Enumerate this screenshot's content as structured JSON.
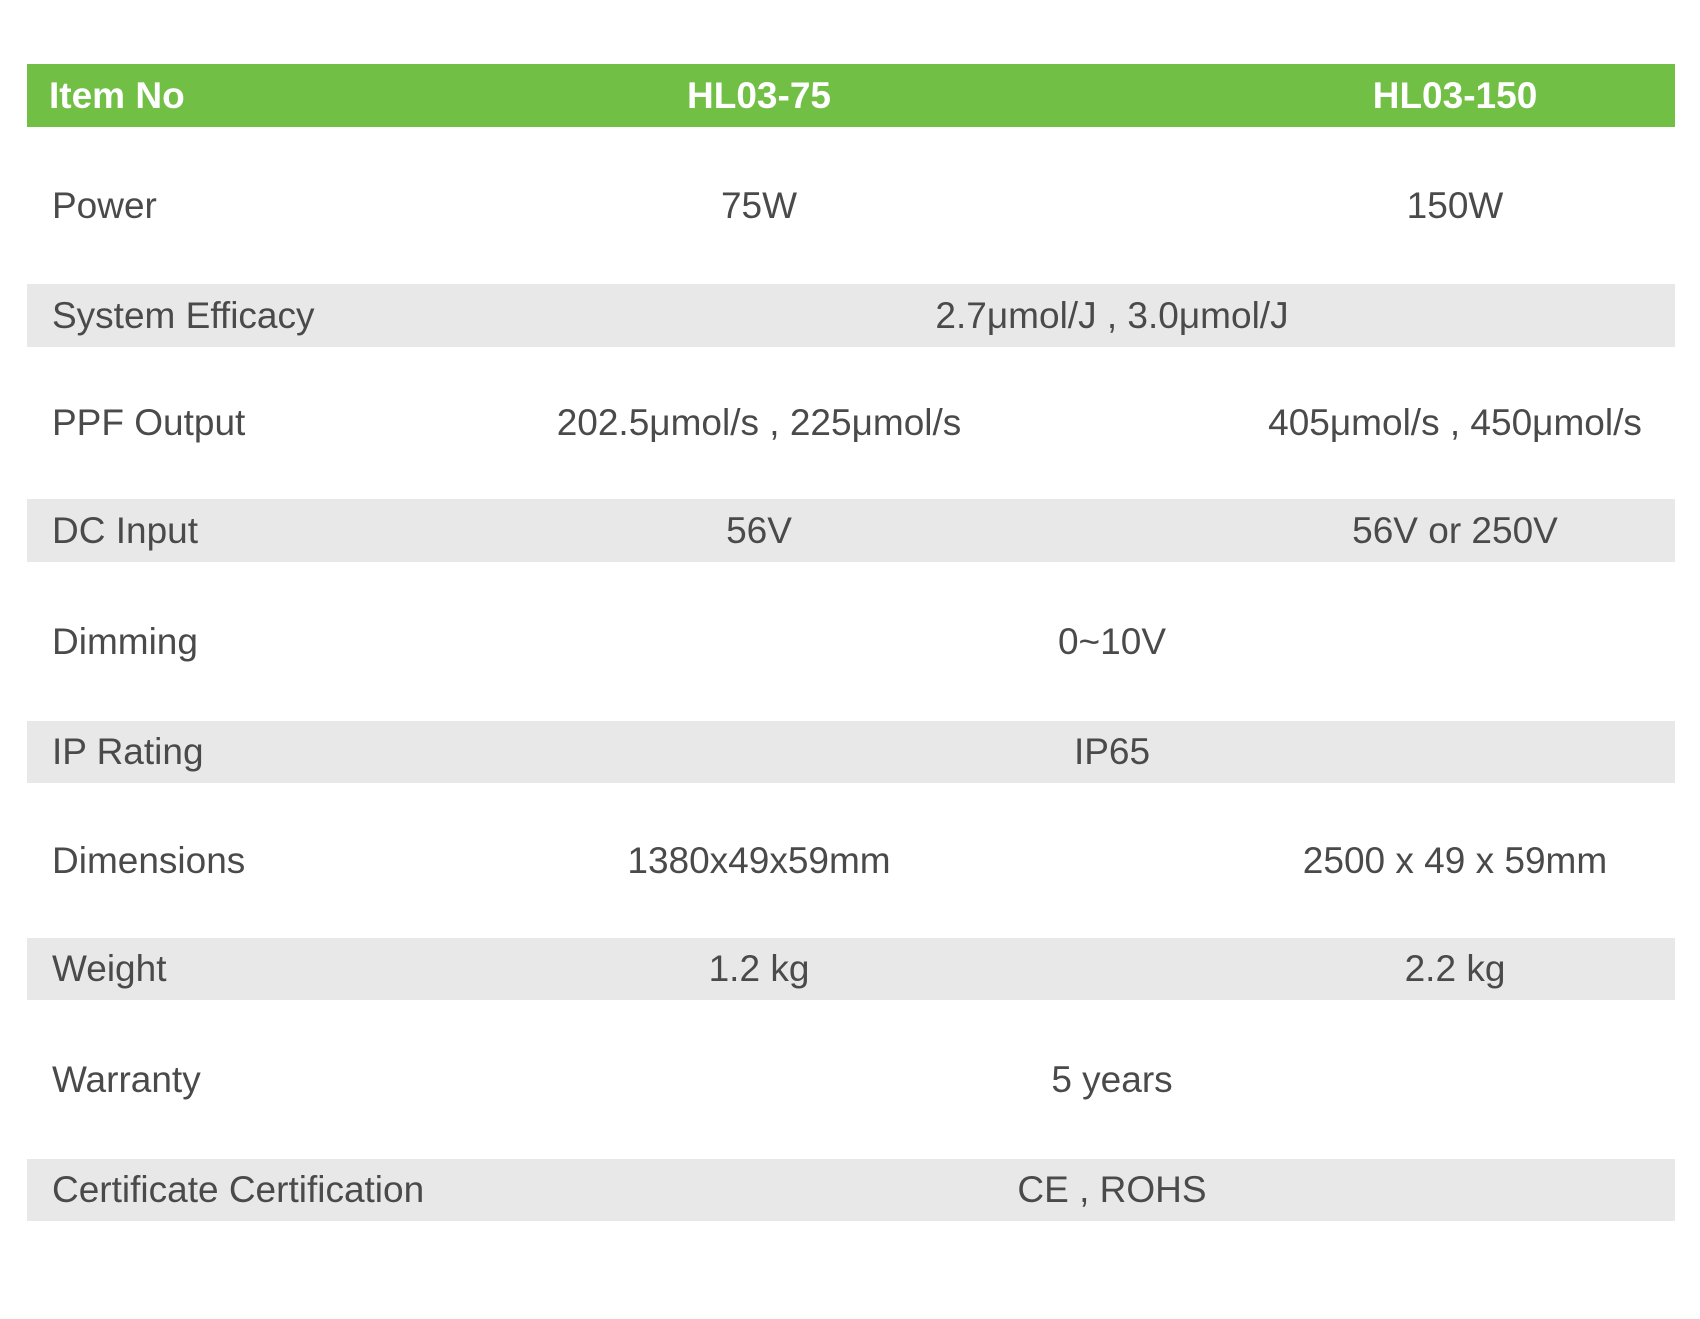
{
  "header": {
    "label": "Item No",
    "col1": "HL03-75",
    "col2": "HL03-150"
  },
  "rows": [
    {
      "label": "Power",
      "col1": "75W",
      "col2": "150W"
    },
    {
      "label": "System Efficacy",
      "span": "2.7μmol/J , 3.0μmol/J"
    },
    {
      "label": "PPF Output",
      "col1": "202.5μmol/s , 225μmol/s",
      "col2": "405μmol/s , 450μmol/s"
    },
    {
      "label": "DC  Input",
      "col1": "56V",
      "col2": "56V or 250V"
    },
    {
      "label": "Dimming",
      "span": "0~10V"
    },
    {
      "label": "IP Rating",
      "span": "IP65"
    },
    {
      "label": "Dimensions",
      "col1": "1380x49x59mm",
      "col2": "2500 x 49 x 59mm"
    },
    {
      "label": "Weight",
      "col1": "1.2 kg",
      "col2": "2.2  kg"
    },
    {
      "label": "Warranty",
      "span": "5 years"
    },
    {
      "label": "Certificate Certification",
      "span": "CE , ROHS"
    }
  ],
  "colors": {
    "header_bg": "#71bf44",
    "stripe_bg": "#e8e8e9",
    "text": "#4a4a4a"
  }
}
